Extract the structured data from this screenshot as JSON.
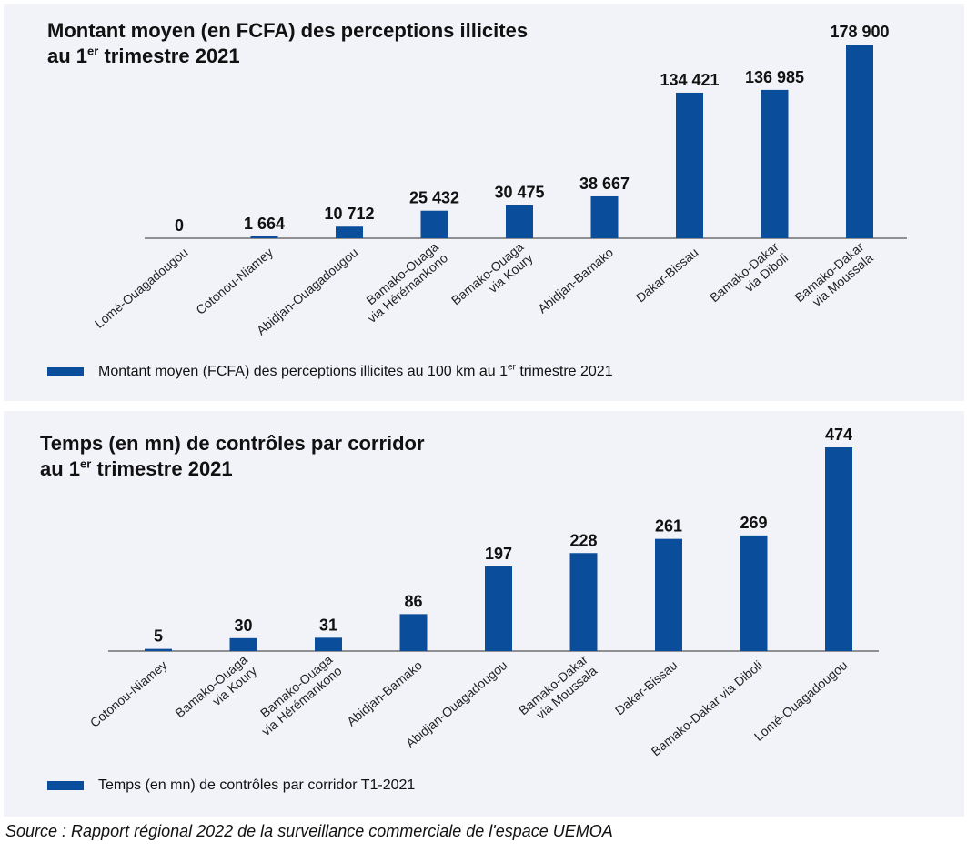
{
  "colors": {
    "bar": "#0a4d9b",
    "axis": "#555555",
    "text": "#111111"
  },
  "charts": [
    {
      "title_prefix": "Montant moyen (en FCFA) des perceptions illicites",
      "title_line2_prefix": "au 1",
      "title_sup": "er",
      "title_line2_suffix": " trimestre 2021",
      "legend_prefix": "Montant moyen (FCFA) des perceptions illicites au 100 km au 1",
      "legend_sup": "er",
      "legend_suffix": " trimestre 2021"
    },
    {
      "title_prefix": "Temps (en mn) de contrôles par corridor",
      "title_line2_prefix": "au 1",
      "title_sup": "er",
      "title_line2_suffix": " trimestre 2021",
      "legend_prefix": "Temps (en mn) de contrôles par corridor T1-2021",
      "legend_sup": "",
      "legend_suffix": ""
    }
  ],
  "chart_data": [
    {
      "type": "bar",
      "categories": [
        [
          "Lomé-Ouagadougou"
        ],
        [
          "Cotonou-Niamey"
        ],
        [
          "Abidjan-Ouagadougou"
        ],
        [
          "Bamako-Ouaga",
          "via Hérémankono"
        ],
        [
          "Bamako-Ouaga",
          "via Koury"
        ],
        [
          "Abidjan-Bamako"
        ],
        [
          "Dakar-Bissau"
        ],
        [
          "Bamako-Dakar",
          "via Diboli"
        ],
        [
          "Bamako-Dakar",
          "via Moussala"
        ]
      ],
      "values": [
        0,
        1664,
        10712,
        25432,
        30475,
        38667,
        134421,
        136985,
        178900
      ],
      "data_labels": [
        "0",
        "1 664",
        "10 712",
        "25 432",
        "30 475",
        "38 667",
        "134 421",
        "136 985",
        "178 900"
      ],
      "ylim": [
        0,
        178900
      ],
      "grid": false,
      "legend_position": "bottom-left"
    },
    {
      "type": "bar",
      "categories": [
        [
          "Cotonou-Niamey"
        ],
        [
          "Bamako-Ouaga",
          "via Koury"
        ],
        [
          "Bamako-Ouaga",
          "via Hérémankono"
        ],
        [
          "Abidjan-Bamako"
        ],
        [
          "Abidjan-Ouagadougou"
        ],
        [
          "Bamako-Dakar",
          "via Moussala"
        ],
        [
          "Dakar-Bissau"
        ],
        [
          "Bamako-Dakar via Diboli"
        ],
        [
          "Lomé-Ouagadougou"
        ]
      ],
      "values": [
        5,
        30,
        31,
        86,
        197,
        228,
        261,
        269,
        474
      ],
      "data_labels": [
        "5",
        "30",
        "31",
        "86",
        "197",
        "228",
        "261",
        "269",
        "474"
      ],
      "ylim": [
        0,
        474
      ],
      "grid": false,
      "legend_position": "bottom-left"
    }
  ],
  "source": "Source : Rapport régional 2022 de la surveillance commerciale de l'espace UEMOA"
}
